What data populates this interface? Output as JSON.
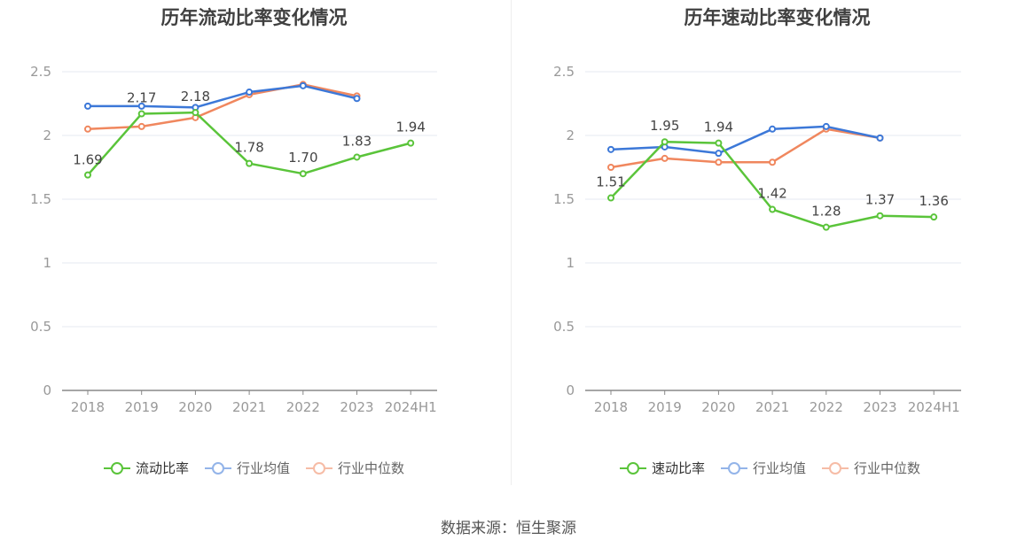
{
  "colors": {
    "series1": "#5ac43a",
    "avg": "#3c78d8",
    "median": "#f0875e",
    "grid": "#e6e9f2",
    "axis": "#888888",
    "label": "#999999"
  },
  "source": "数据来源：恒生聚源",
  "chart_data": [
    {
      "type": "line",
      "title": "历年流动比率变化情况",
      "categories": [
        "2018",
        "2019",
        "2020",
        "2021",
        "2022",
        "2023",
        "2024H1"
      ],
      "ylim": [
        0,
        2.5
      ],
      "yticks": [
        "0",
        "0.5",
        "1",
        "1.5",
        "2",
        "2.5"
      ],
      "legend_position": "bottom",
      "grid": true,
      "series": [
        {
          "name": "流动比率",
          "values": [
            1.69,
            2.17,
            2.18,
            1.78,
            1.7,
            1.83,
            1.94
          ],
          "labels": [
            "1.69",
            "2.17",
            "2.18",
            "1.78",
            "1.70",
            "1.83",
            "1.94"
          ]
        },
        {
          "name": "行业均值",
          "values": [
            2.23,
            2.23,
            2.22,
            2.34,
            2.39,
            2.29,
            null
          ]
        },
        {
          "name": "行业中位数",
          "values": [
            2.05,
            2.07,
            2.14,
            2.32,
            2.4,
            2.31,
            null
          ]
        }
      ]
    },
    {
      "type": "line",
      "title": "历年速动比率变化情况",
      "categories": [
        "2018",
        "2019",
        "2020",
        "2021",
        "2022",
        "2023",
        "2024H1"
      ],
      "ylim": [
        0,
        2.5
      ],
      "yticks": [
        "0",
        "0.5",
        "1",
        "1.5",
        "2",
        "2.5"
      ],
      "legend_position": "bottom",
      "grid": true,
      "series": [
        {
          "name": "速动比率",
          "values": [
            1.51,
            1.95,
            1.94,
            1.42,
            1.28,
            1.37,
            1.36
          ],
          "labels": [
            "1.51",
            "1.95",
            "1.94",
            "1.42",
            "1.28",
            "1.37",
            "1.36"
          ]
        },
        {
          "name": "行业均值",
          "values": [
            1.89,
            1.91,
            1.86,
            2.05,
            2.07,
            1.98,
            null
          ]
        },
        {
          "name": "行业中位数",
          "values": [
            1.75,
            1.82,
            1.79,
            1.79,
            2.05,
            1.98,
            null
          ]
        }
      ]
    }
  ]
}
